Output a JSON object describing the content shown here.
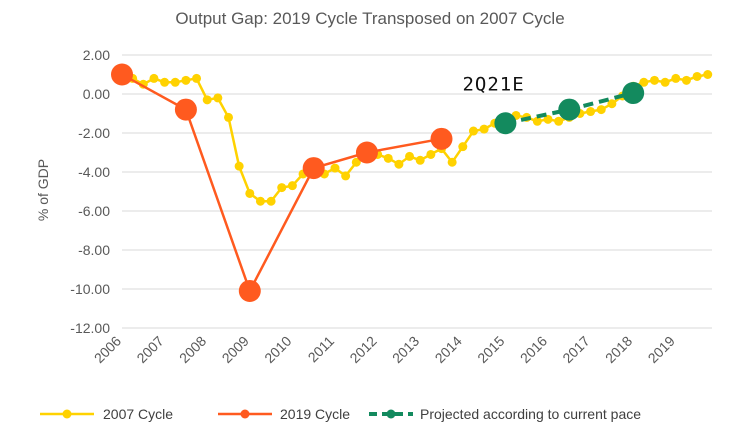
{
  "chart_data": {
    "type": "line",
    "title": "Output Gap: 2019 Cycle Transposed on 2007 Cycle",
    "ylabel": "% of GDP",
    "xlabel": "",
    "ylim": [
      -12,
      2
    ],
    "yticks": [
      "2.00",
      "0.00",
      "-2.00",
      "-4.00",
      "-6.00",
      "-8.00",
      "-10.00",
      "-12.00"
    ],
    "ytick_values": [
      2,
      0,
      -2,
      -4,
      -6,
      -8,
      -10,
      -12
    ],
    "xlim": [
      2006,
      2019.85
    ],
    "xticks": [
      "2006",
      "2007",
      "2008",
      "2009",
      "2010",
      "2011",
      "2012",
      "2013",
      "2014",
      "2015",
      "2016",
      "2017",
      "2018",
      "2019"
    ],
    "xtick_values": [
      2006,
      2007,
      2008,
      2009,
      2010,
      2011,
      2012,
      2013,
      2014,
      2015,
      2016,
      2017,
      2018,
      2019
    ],
    "grid": true,
    "legend_position": "bottom",
    "annotations": [
      {
        "text": "2Q21E",
        "x": 2015.5,
        "y": 0.55
      }
    ],
    "series": [
      {
        "name": "2007 Cycle",
        "color": "#FFD200",
        "style": "solid-small-markers",
        "x": [
          2006.0,
          2006.25,
          2006.5,
          2006.75,
          2007.0,
          2007.25,
          2007.5,
          2007.75,
          2008.0,
          2008.25,
          2008.5,
          2008.75,
          2009.0,
          2009.25,
          2009.5,
          2009.75,
          2010.0,
          2010.25,
          2010.5,
          2010.75,
          2011.0,
          2011.25,
          2011.5,
          2011.75,
          2012.0,
          2012.25,
          2012.5,
          2012.75,
          2013.0,
          2013.25,
          2013.5,
          2013.75,
          2014.0,
          2014.25,
          2014.5,
          2014.75,
          2015.0,
          2015.25,
          2015.5,
          2015.75,
          2016.0,
          2016.25,
          2016.5,
          2016.75,
          2017.0,
          2017.25,
          2017.5,
          2017.75,
          2018.0,
          2018.25,
          2018.5,
          2018.75,
          2019.0,
          2019.25,
          2019.5,
          2019.75
        ],
        "values": [
          1.0,
          0.8,
          0.5,
          0.8,
          0.6,
          0.6,
          0.7,
          0.8,
          -0.3,
          -0.2,
          -1.2,
          -3.7,
          -5.1,
          -5.5,
          -5.5,
          -4.8,
          -4.7,
          -4.1,
          -3.6,
          -4.1,
          -3.8,
          -4.2,
          -3.5,
          -3.0,
          -3.1,
          -3.3,
          -3.6,
          -3.2,
          -3.4,
          -3.1,
          -2.8,
          -3.5,
          -2.7,
          -1.9,
          -1.8,
          -1.5,
          -1.3,
          -1.1,
          -1.2,
          -1.4,
          -1.3,
          -1.4,
          -1.2,
          -1.0,
          -0.9,
          -0.8,
          -0.5,
          -0.1,
          0.4,
          0.6,
          0.7,
          0.6,
          0.8,
          0.7,
          0.9,
          1.0
        ]
      },
      {
        "name": "2019 Cycle",
        "color": "#FF5A1F",
        "style": "solid-large-markers",
        "x": [
          2006.0,
          2007.5,
          2009.0,
          2010.5,
          2011.75,
          2013.5,
          2014.5
        ],
        "values": [
          1.0,
          -0.8,
          -10.1,
          -3.8,
          -3.0,
          -2.3,
          null
        ]
      },
      {
        "name": "Projected according to current pace",
        "color": "#138A5E",
        "style": "dashed-large-markers",
        "x": [
          2015.0,
          2016.5,
          2018.0
        ],
        "values": [
          -1.5,
          -0.8,
          0.05
        ]
      }
    ]
  }
}
